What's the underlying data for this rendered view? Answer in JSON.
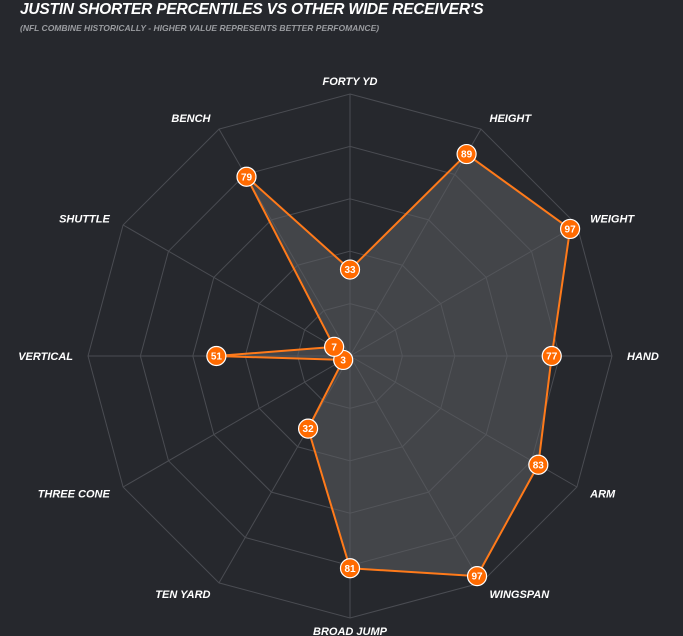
{
  "title": "JUSTIN SHORTER PERCENTILES VS OTHER WIDE RECEIVER'S",
  "subtitle": "(NFL COMBINE HISTORICALLY - HIGHER VALUE REPRESENTS BETTER PERFOMANCE)",
  "colors": {
    "background": "#26282d",
    "grid": "#4a4c52",
    "series_line": "#ff7a1a",
    "series_fill": "#5b5c60",
    "marker": "#ff6a00"
  },
  "chart_data": {
    "type": "radar",
    "categories": [
      "FORTY YD",
      "HEIGHT",
      "WEIGHT",
      "HAND",
      "ARM",
      "WINGSPAN",
      "BROAD JUMP",
      "TEN YARD",
      "THREE CONE",
      "VERTICAL",
      "SHUTTLE",
      "BENCH"
    ],
    "series": [
      {
        "values": [
          33,
          89,
          97,
          77,
          83,
          97,
          81,
          32,
          3,
          51,
          7,
          79
        ]
      }
    ],
    "range": [
      0,
      100
    ],
    "grid_rings": 5,
    "grid": true,
    "legend": "none"
  }
}
